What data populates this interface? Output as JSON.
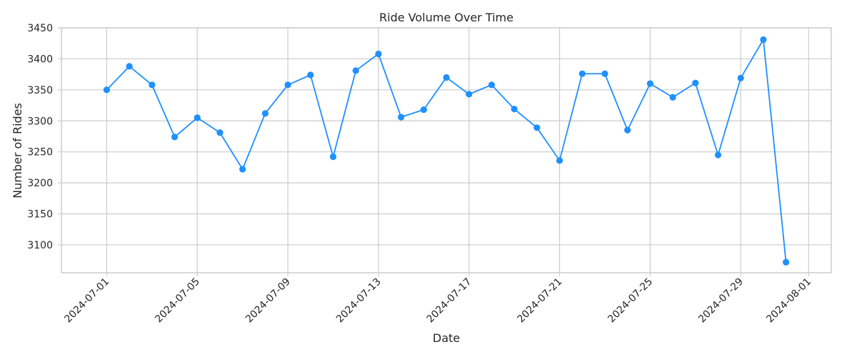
{
  "chart_data": {
    "type": "line",
    "title": "Ride Volume Over Time",
    "xlabel": "Date",
    "ylabel": "Number of Rides",
    "x_range": [
      "2024-06-29",
      "2024-08-02"
    ],
    "ylim": [
      3055,
      3450
    ],
    "y_ticks": [
      3100,
      3150,
      3200,
      3250,
      3300,
      3350,
      3400,
      3450
    ],
    "x_ticks": [
      "2024-07-01",
      "2024-07-05",
      "2024-07-09",
      "2024-07-13",
      "2024-07-17",
      "2024-07-21",
      "2024-07-25",
      "2024-07-29",
      "2024-08-01"
    ],
    "grid": true,
    "legend": "none",
    "series": [
      {
        "color": "#1e90ff",
        "marker": "circle",
        "x": [
          "2024-07-01",
          "2024-07-02",
          "2024-07-03",
          "2024-07-04",
          "2024-07-05",
          "2024-07-06",
          "2024-07-07",
          "2024-07-08",
          "2024-07-09",
          "2024-07-10",
          "2024-07-11",
          "2024-07-12",
          "2024-07-13",
          "2024-07-14",
          "2024-07-15",
          "2024-07-16",
          "2024-07-17",
          "2024-07-18",
          "2024-07-19",
          "2024-07-20",
          "2024-07-21",
          "2024-07-22",
          "2024-07-23",
          "2024-07-24",
          "2024-07-25",
          "2024-07-26",
          "2024-07-27",
          "2024-07-28",
          "2024-07-29",
          "2024-07-30",
          "2024-07-31"
        ],
        "values": [
          3350,
          3388,
          3358,
          3274,
          3305,
          3281,
          3222,
          3312,
          3358,
          3374,
          3242,
          3381,
          3408,
          3306,
          3318,
          3370,
          3343,
          3358,
          3319,
          3289,
          3236,
          3376,
          3376,
          3285,
          3360,
          3338,
          3361,
          3245,
          3369,
          3431,
          3072
        ]
      }
    ]
  }
}
